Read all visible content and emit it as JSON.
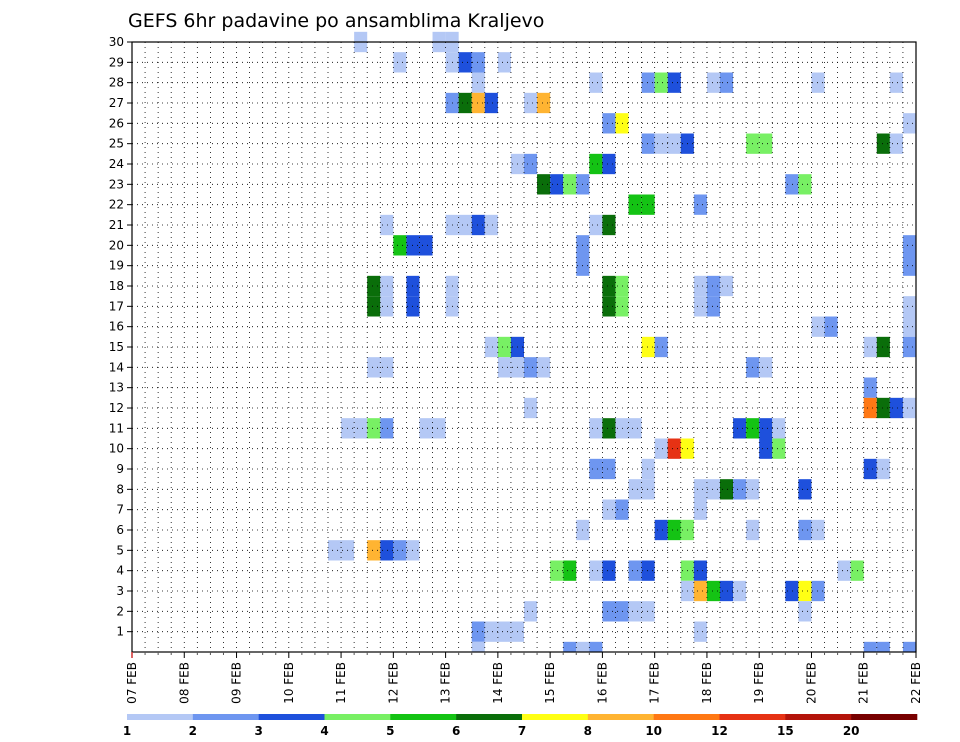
{
  "chart_data": {
    "type": "heatmap",
    "title": "GEFS 6hr padavine po ansamblima Kraljevo",
    "x_labels": [
      "07 FEB",
      "08 FEB",
      "09 FEB",
      "10 FEB",
      "11 FEB",
      "12 FEB",
      "13 FEB",
      "14 FEB",
      "15 FEB",
      "16 FEB",
      "17 FEB",
      "18 FEB",
      "19 FEB",
      "20 FEB",
      "21 FEB",
      "22 FEB"
    ],
    "y_labels": [
      "1",
      "2",
      "3",
      "4",
      "5",
      "6",
      "7",
      "8",
      "9",
      "10",
      "11",
      "12",
      "13",
      "14",
      "15",
      "16",
      "17",
      "18",
      "19",
      "20",
      "21",
      "22",
      "23",
      "24",
      "25",
      "26",
      "27",
      "28",
      "29",
      "30"
    ],
    "ylim": [
      0,
      30
    ],
    "time_step_hours": 6,
    "grid": "dotted",
    "colorbar": {
      "position": "bottom",
      "labels": [
        "1",
        "2",
        "3",
        "4",
        "5",
        "6",
        "7",
        "8",
        "10",
        "12",
        "15",
        "20"
      ],
      "colors": [
        "#b4c8f5",
        "#6e96f0",
        "#1e50dc",
        "#78f064",
        "#14c314",
        "#0a6e0a",
        "#ffff14",
        "#ffb432",
        "#ff7814",
        "#e63214",
        "#b4140a",
        "#780000"
      ]
    },
    "cells": [
      {
        "day": 11.25,
        "member": 30,
        "level": 1
      },
      {
        "day": 12.75,
        "member": 30,
        "level": 1
      },
      {
        "day": 13.0,
        "member": 30,
        "level": 1
      },
      {
        "day": 12.0,
        "member": 29,
        "level": 1
      },
      {
        "day": 13.0,
        "member": 29,
        "level": 1
      },
      {
        "day": 13.25,
        "member": 29,
        "level": 3
      },
      {
        "day": 13.5,
        "member": 29,
        "level": 2
      },
      {
        "day": 14.0,
        "member": 29,
        "level": 1
      },
      {
        "day": 13.5,
        "member": 28,
        "level": 1
      },
      {
        "day": 15.75,
        "member": 28,
        "level": 1
      },
      {
        "day": 16.75,
        "member": 28,
        "level": 2
      },
      {
        "day": 17.0,
        "member": 28,
        "level": 4
      },
      {
        "day": 17.25,
        "member": 28,
        "level": 3
      },
      {
        "day": 18.0,
        "member": 28,
        "level": 1
      },
      {
        "day": 18.25,
        "member": 28,
        "level": 2
      },
      {
        "day": 20.0,
        "member": 28,
        "level": 1
      },
      {
        "day": 21.5,
        "member": 28,
        "level": 1
      },
      {
        "day": 22.0,
        "member": 28,
        "level": 2
      },
      {
        "day": 13.0,
        "member": 27,
        "level": 2
      },
      {
        "day": 13.25,
        "member": 27,
        "level": 6
      },
      {
        "day": 13.5,
        "member": 27,
        "level": 8
      },
      {
        "day": 13.75,
        "member": 27,
        "level": 3
      },
      {
        "day": 14.5,
        "member": 27,
        "level": 1
      },
      {
        "day": 14.75,
        "member": 27,
        "level": 8
      },
      {
        "day": 16.0,
        "member": 26,
        "level": 2
      },
      {
        "day": 16.25,
        "member": 26,
        "level": 7
      },
      {
        "day": 21.75,
        "member": 26,
        "level": 1
      },
      {
        "day": 22.0,
        "member": 26,
        "level": 8
      },
      {
        "day": 16.75,
        "member": 25,
        "level": 2
      },
      {
        "day": 17.0,
        "member": 25,
        "level": 1
      },
      {
        "day": 17.25,
        "member": 25,
        "level": 1
      },
      {
        "day": 17.5,
        "member": 25,
        "level": 3
      },
      {
        "day": 18.75,
        "member": 25,
        "level": 4
      },
      {
        "day": 19.0,
        "member": 25,
        "level": 4
      },
      {
        "day": 21.25,
        "member": 25,
        "level": 6
      },
      {
        "day": 21.5,
        "member": 25,
        "level": 1
      },
      {
        "day": 14.25,
        "member": 24,
        "level": 1
      },
      {
        "day": 14.5,
        "member": 24,
        "level": 2
      },
      {
        "day": 15.75,
        "member": 24,
        "level": 5
      },
      {
        "day": 16.0,
        "member": 24,
        "level": 3
      },
      {
        "day": 14.75,
        "member": 23,
        "level": 6
      },
      {
        "day": 15.0,
        "member": 23,
        "level": 3
      },
      {
        "day": 15.25,
        "member": 23,
        "level": 4
      },
      {
        "day": 15.5,
        "member": 23,
        "level": 2
      },
      {
        "day": 19.5,
        "member": 23,
        "level": 2
      },
      {
        "day": 19.75,
        "member": 23,
        "level": 4
      },
      {
        "day": 16.5,
        "member": 22,
        "level": 5
      },
      {
        "day": 16.75,
        "member": 22,
        "level": 5
      },
      {
        "day": 17.75,
        "member": 22,
        "level": 2
      },
      {
        "day": 11.75,
        "member": 21,
        "level": 1
      },
      {
        "day": 13.0,
        "member": 21,
        "level": 1
      },
      {
        "day": 13.25,
        "member": 21,
        "level": 1
      },
      {
        "day": 13.5,
        "member": 21,
        "level": 3
      },
      {
        "day": 13.75,
        "member": 21,
        "level": 1
      },
      {
        "day": 15.75,
        "member": 21,
        "level": 1
      },
      {
        "day": 16.0,
        "member": 21,
        "level": 6
      },
      {
        "day": 12.0,
        "member": 20,
        "level": 5
      },
      {
        "day": 12.25,
        "member": 20,
        "level": 3
      },
      {
        "day": 12.5,
        "member": 20,
        "level": 3
      },
      {
        "day": 15.5,
        "member": 20,
        "level": 2
      },
      {
        "day": 21.75,
        "member": 20,
        "level": 2
      },
      {
        "day": 15.5,
        "member": 19,
        "level": 2
      },
      {
        "day": 21.75,
        "member": 19,
        "level": 2
      },
      {
        "day": 11.5,
        "member": 18,
        "level": 6
      },
      {
        "day": 11.75,
        "member": 18,
        "level": 1
      },
      {
        "day": 12.25,
        "member": 18,
        "level": 3
      },
      {
        "day": 13.0,
        "member": 18,
        "level": 1
      },
      {
        "day": 16.0,
        "member": 18,
        "level": 6
      },
      {
        "day": 16.25,
        "member": 18,
        "level": 4
      },
      {
        "day": 17.75,
        "member": 18,
        "level": 1
      },
      {
        "day": 18.0,
        "member": 18,
        "level": 2
      },
      {
        "day": 18.25,
        "member": 18,
        "level": 1
      },
      {
        "day": 11.5,
        "member": 17,
        "level": 6
      },
      {
        "day": 11.75,
        "member": 17,
        "level": 1
      },
      {
        "day": 12.25,
        "member": 17,
        "level": 3
      },
      {
        "day": 13.0,
        "member": 17,
        "level": 1
      },
      {
        "day": 16.0,
        "member": 17,
        "level": 6
      },
      {
        "day": 16.25,
        "member": 17,
        "level": 4
      },
      {
        "day": 17.75,
        "member": 17,
        "level": 1
      },
      {
        "day": 18.0,
        "member": 17,
        "level": 2
      },
      {
        "day": 21.75,
        "member": 17,
        "level": 1
      },
      {
        "day": 20.0,
        "member": 16,
        "level": 1
      },
      {
        "day": 20.25,
        "member": 16,
        "level": 2
      },
      {
        "day": 21.75,
        "member": 16,
        "level": 1
      },
      {
        "day": 13.75,
        "member": 15,
        "level": 1
      },
      {
        "day": 14.0,
        "member": 15,
        "level": 4
      },
      {
        "day": 14.25,
        "member": 15,
        "level": 3
      },
      {
        "day": 16.75,
        "member": 15,
        "level": 7
      },
      {
        "day": 17.0,
        "member": 15,
        "level": 2
      },
      {
        "day": 21.0,
        "member": 15,
        "level": 1
      },
      {
        "day": 21.25,
        "member": 15,
        "level": 6
      },
      {
        "day": 21.75,
        "member": 15,
        "level": 2
      },
      {
        "day": 22.0,
        "member": 15,
        "level": 1
      },
      {
        "day": 11.5,
        "member": 14,
        "level": 1
      },
      {
        "day": 11.75,
        "member": 14,
        "level": 1
      },
      {
        "day": 14.0,
        "member": 14,
        "level": 1
      },
      {
        "day": 14.25,
        "member": 14,
        "level": 1
      },
      {
        "day": 14.5,
        "member": 14,
        "level": 2
      },
      {
        "day": 14.75,
        "member": 14,
        "level": 1
      },
      {
        "day": 18.75,
        "member": 14,
        "level": 2
      },
      {
        "day": 19.0,
        "member": 14,
        "level": 1
      },
      {
        "day": 21.0,
        "member": 13,
        "level": 2
      },
      {
        "day": 14.5,
        "member": 12,
        "level": 1
      },
      {
        "day": 21.0,
        "member": 12,
        "level": 9
      },
      {
        "day": 21.25,
        "member": 12,
        "level": 6
      },
      {
        "day": 21.5,
        "member": 12,
        "level": 3
      },
      {
        "day": 21.75,
        "member": 12,
        "level": 1
      },
      {
        "day": 22.0,
        "member": 12,
        "level": 3
      },
      {
        "day": 11.0,
        "member": 11,
        "level": 1
      },
      {
        "day": 11.25,
        "member": 11,
        "level": 1
      },
      {
        "day": 11.5,
        "member": 11,
        "level": 4
      },
      {
        "day": 11.75,
        "member": 11,
        "level": 2
      },
      {
        "day": 12.5,
        "member": 11,
        "level": 1
      },
      {
        "day": 12.75,
        "member": 11,
        "level": 1
      },
      {
        "day": 15.75,
        "member": 11,
        "level": 1
      },
      {
        "day": 16.0,
        "member": 11,
        "level": 6
      },
      {
        "day": 16.25,
        "member": 11,
        "level": 1
      },
      {
        "day": 16.5,
        "member": 11,
        "level": 1
      },
      {
        "day": 18.5,
        "member": 11,
        "level": 3
      },
      {
        "day": 18.75,
        "member": 11,
        "level": 5
      },
      {
        "day": 19.0,
        "member": 11,
        "level": 3
      },
      {
        "day": 19.25,
        "member": 11,
        "level": 1
      },
      {
        "day": 17.0,
        "member": 10,
        "level": 1
      },
      {
        "day": 17.25,
        "member": 10,
        "level": 10
      },
      {
        "day": 17.5,
        "member": 10,
        "level": 7
      },
      {
        "day": 19.0,
        "member": 10,
        "level": 3
      },
      {
        "day": 19.25,
        "member": 10,
        "level": 4
      },
      {
        "day": 22.0,
        "member": 10,
        "level": 1
      },
      {
        "day": 15.75,
        "member": 9,
        "level": 2
      },
      {
        "day": 16.0,
        "member": 9,
        "level": 2
      },
      {
        "day": 16.75,
        "member": 9,
        "level": 1
      },
      {
        "day": 21.0,
        "member": 9,
        "level": 3
      },
      {
        "day": 21.25,
        "member": 9,
        "level": 1
      },
      {
        "day": 16.5,
        "member": 8,
        "level": 1
      },
      {
        "day": 16.75,
        "member": 8,
        "level": 1
      },
      {
        "day": 17.75,
        "member": 8,
        "level": 1
      },
      {
        "day": 18.0,
        "member": 8,
        "level": 1
      },
      {
        "day": 18.25,
        "member": 8,
        "level": 6
      },
      {
        "day": 18.5,
        "member": 8,
        "level": 2
      },
      {
        "day": 18.75,
        "member": 8,
        "level": 1
      },
      {
        "day": 19.75,
        "member": 8,
        "level": 3
      },
      {
        "day": 16.0,
        "member": 7,
        "level": 1
      },
      {
        "day": 16.25,
        "member": 7,
        "level": 2
      },
      {
        "day": 17.75,
        "member": 7,
        "level": 1
      },
      {
        "day": 15.5,
        "member": 6,
        "level": 1
      },
      {
        "day": 17.0,
        "member": 6,
        "level": 3
      },
      {
        "day": 17.25,
        "member": 6,
        "level": 5
      },
      {
        "day": 17.5,
        "member": 6,
        "level": 4
      },
      {
        "day": 18.75,
        "member": 6,
        "level": 1
      },
      {
        "day": 19.75,
        "member": 6,
        "level": 2
      },
      {
        "day": 20.0,
        "member": 6,
        "level": 1
      },
      {
        "day": 10.75,
        "member": 5,
        "level": 1
      },
      {
        "day": 11.0,
        "member": 5,
        "level": 1
      },
      {
        "day": 11.5,
        "member": 5,
        "level": 8
      },
      {
        "day": 11.75,
        "member": 5,
        "level": 3
      },
      {
        "day": 12.0,
        "member": 5,
        "level": 2
      },
      {
        "day": 12.25,
        "member": 5,
        "level": 1
      },
      {
        "day": 15.0,
        "member": 4,
        "level": 4
      },
      {
        "day": 15.25,
        "member": 4,
        "level": 5
      },
      {
        "day": 15.75,
        "member": 4,
        "level": 1
      },
      {
        "day": 16.0,
        "member": 4,
        "level": 3
      },
      {
        "day": 16.5,
        "member": 4,
        "level": 2
      },
      {
        "day": 16.75,
        "member": 4,
        "level": 3
      },
      {
        "day": 17.5,
        "member": 4,
        "level": 4
      },
      {
        "day": 17.75,
        "member": 4,
        "level": 3
      },
      {
        "day": 20.5,
        "member": 4,
        "level": 1
      },
      {
        "day": 20.75,
        "member": 4,
        "level": 4
      },
      {
        "day": 17.5,
        "member": 3,
        "level": 1
      },
      {
        "day": 17.75,
        "member": 3,
        "level": 8
      },
      {
        "day": 18.0,
        "member": 3,
        "level": 5
      },
      {
        "day": 18.25,
        "member": 3,
        "level": 3
      },
      {
        "day": 18.5,
        "member": 3,
        "level": 1
      },
      {
        "day": 19.5,
        "member": 3,
        "level": 3
      },
      {
        "day": 19.75,
        "member": 3,
        "level": 7
      },
      {
        "day": 20.0,
        "member": 3,
        "level": 2
      },
      {
        "day": 14.5,
        "member": 2,
        "level": 1
      },
      {
        "day": 16.0,
        "member": 2,
        "level": 2
      },
      {
        "day": 16.25,
        "member": 2,
        "level": 2
      },
      {
        "day": 16.5,
        "member": 2,
        "level": 1
      },
      {
        "day": 16.75,
        "member": 2,
        "level": 1
      },
      {
        "day": 19.75,
        "member": 2,
        "level": 1
      },
      {
        "day": 13.5,
        "member": 1,
        "level": 2
      },
      {
        "day": 13.75,
        "member": 1,
        "level": 1
      },
      {
        "day": 14.0,
        "member": 1,
        "level": 1
      },
      {
        "day": 14.25,
        "member": 1,
        "level": 1
      },
      {
        "day": 17.75,
        "member": 1,
        "level": 1
      },
      {
        "day": 13.5,
        "member": 0.5,
        "level": 1
      },
      {
        "day": 15.25,
        "member": 0.5,
        "level": 2
      },
      {
        "day": 15.5,
        "member": 0.5,
        "level": 1
      },
      {
        "day": 15.75,
        "member": 0.5,
        "level": 2
      },
      {
        "day": 21.0,
        "member": 0.5,
        "level": 2
      },
      {
        "day": 21.25,
        "member": 0.5,
        "level": 2
      },
      {
        "day": 21.75,
        "member": 0.5,
        "level": 2
      },
      {
        "day": 22.0,
        "member": 0.5,
        "level": 3
      }
    ]
  }
}
